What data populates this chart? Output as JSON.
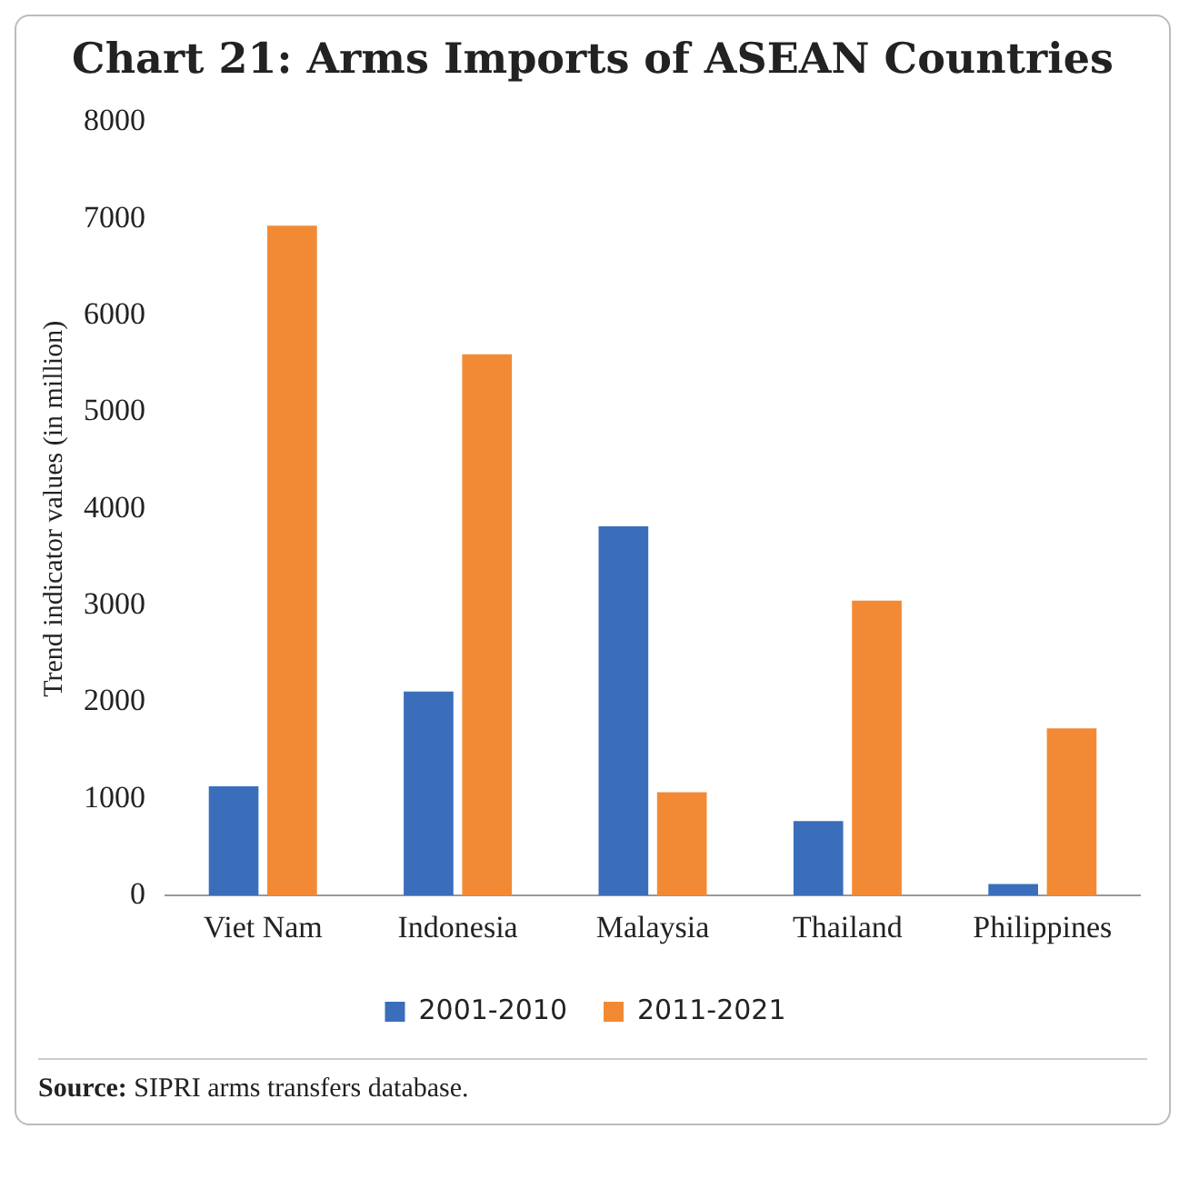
{
  "chart_data": {
    "type": "bar",
    "title": "Chart 21: Arms Imports of ASEAN Countries",
    "ylabel": "Trend indicator values (in million)",
    "categories": [
      "Viet Nam",
      "Indonesia",
      "Malaysia",
      "Thailand",
      "Philippines"
    ],
    "series": [
      {
        "name": "2001-2010",
        "color": "#3a6ebb",
        "values": [
          1130,
          2110,
          3820,
          770,
          120
        ]
      },
      {
        "name": "2011-2021",
        "color": "#f28a35",
        "values": [
          6930,
          5600,
          1070,
          3050,
          1730
        ]
      }
    ],
    "ylim": [
      0,
      8000
    ],
    "yticks": [
      0,
      1000,
      2000,
      3000,
      4000,
      5000,
      6000,
      7000,
      8000
    ],
    "grid": false,
    "legend": "bottom",
    "annotations": [
      "Source: SIPRI arms transfers database."
    ]
  }
}
